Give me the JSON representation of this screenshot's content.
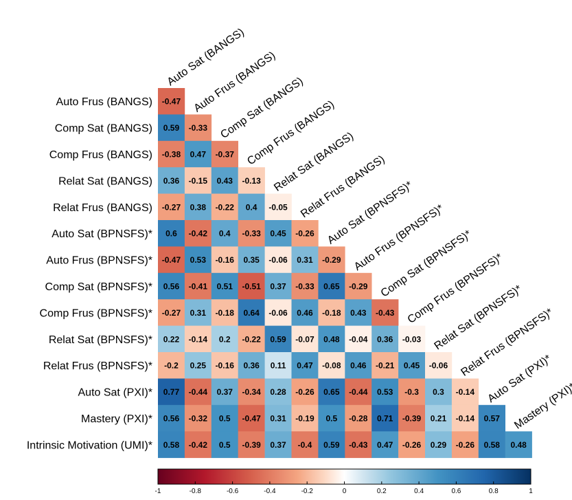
{
  "chart_data": {
    "type": "heatmap",
    "title": "",
    "legend": "bottom",
    "color_scale": {
      "min": -1,
      "max": 1,
      "ticks": [
        -1,
        -0.8,
        -0.6,
        -0.4,
        -0.2,
        0,
        0.2,
        0.4,
        0.6,
        0.8,
        1
      ],
      "tick_labels": [
        "-1",
        "-0.8",
        "-0.6",
        "-0.4",
        "-0.2",
        "0",
        "0.2",
        "0.4",
        "0.6",
        "0.8",
        "1"
      ],
      "colors": {
        "neg_end": "#67001f",
        "neg_mid": "#d6604d",
        "neutral": "#f7f7f7",
        "pos_mid": "#4393c3",
        "pos_end": "#053061"
      }
    },
    "row_labels": [
      "Auto Frus (BANGS)",
      "Comp Sat (BANGS)",
      "Comp Frus (BANGS)",
      "Relat Sat (BANGS)",
      "Relat Frus (BANGS)",
      "Auto Sat (BPNSFS)*",
      "Auto Frus (BPNSFS)*",
      "Comp Sat (BPNSFS)*",
      "Comp Frus (BPNSFS)*",
      "Relat Sat (BPNSFS)*",
      "Relat Frus (BPNSFS)*",
      "Auto Sat (PXI)*",
      "Mastery (PXI)*",
      "Intrinsic Motivation (UMI)*"
    ],
    "col_labels": [
      "Auto Sat (BANGS)",
      "Auto Frus (BANGS)",
      "Comp Sat (BANGS)",
      "Comp Frus (BANGS)",
      "Relat Sat (BANGS)",
      "Relat Frus (BANGS)",
      "Auto Sat (BPNSFS)*",
      "Auto Frus (BPNSFS)*",
      "Comp Sat (BPNSFS)*",
      "Comp Frus (BPNSFS)*",
      "Relat Sat (BPNSFS)*",
      "Relat Frus (BPNSFS)*",
      "Auto Sat (PXI)*",
      "Mastery (PXI)*"
    ],
    "values": [
      [
        -0.47
      ],
      [
        0.59,
        -0.33
      ],
      [
        -0.38,
        0.47,
        -0.37
      ],
      [
        0.36,
        -0.15,
        0.43,
        -0.13
      ],
      [
        -0.27,
        0.38,
        -0.22,
        0.4,
        -0.05
      ],
      [
        0.6,
        -0.42,
        0.4,
        -0.33,
        0.45,
        -0.26
      ],
      [
        -0.47,
        0.53,
        -0.16,
        0.35,
        -0.06,
        0.31,
        -0.29
      ],
      [
        0.56,
        -0.41,
        0.51,
        -0.51,
        0.37,
        -0.33,
        0.65,
        -0.29
      ],
      [
        -0.27,
        0.31,
        -0.18,
        0.64,
        -0.06,
        0.46,
        -0.18,
        0.43,
        -0.43
      ],
      [
        0.22,
        -0.14,
        0.2,
        -0.22,
        0.59,
        -0.07,
        0.48,
        -0.04,
        0.36,
        -0.03
      ],
      [
        -0.2,
        0.25,
        -0.16,
        0.36,
        0.11,
        0.47,
        -0.08,
        0.46,
        -0.21,
        0.45,
        -0.06
      ],
      [
        0.77,
        -0.44,
        0.37,
        -0.34,
        0.28,
        -0.26,
        0.65,
        -0.44,
        0.53,
        -0.3,
        0.3,
        -0.14
      ],
      [
        0.56,
        -0.32,
        0.5,
        -0.47,
        0.31,
        -0.19,
        0.5,
        -0.28,
        0.71,
        -0.39,
        0.21,
        -0.14,
        0.57
      ],
      [
        0.58,
        -0.42,
        0.5,
        -0.39,
        0.37,
        -0.4,
        0.59,
        -0.43,
        0.47,
        -0.26,
        0.29,
        -0.26,
        0.58,
        0.48
      ]
    ]
  }
}
